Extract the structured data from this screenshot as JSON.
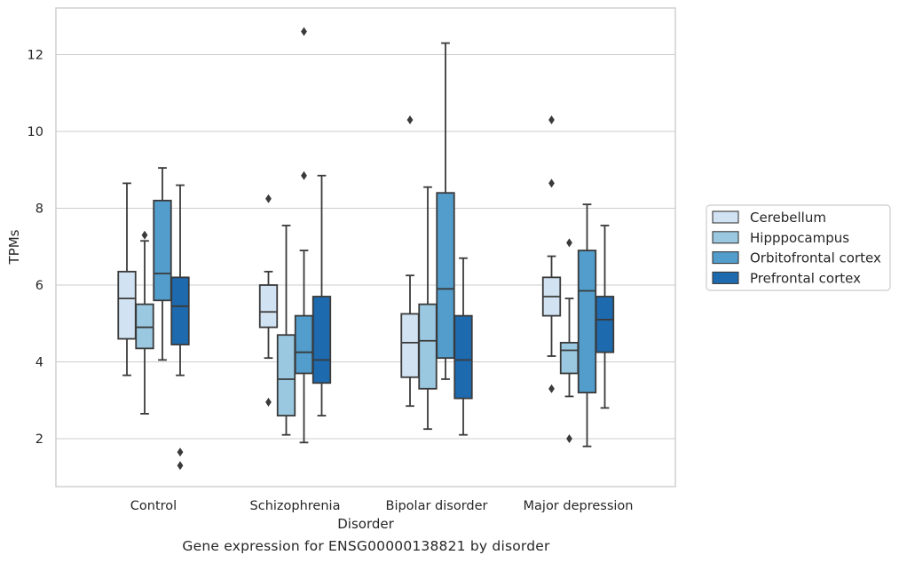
{
  "chart_data": {
    "type": "box",
    "xlabel": "Disorder",
    "ylabel": "TPMs",
    "ylim": [
      0.75,
      13.25
    ],
    "yticks": [
      2,
      4,
      6,
      8,
      10,
      12
    ],
    "grid": "horizontal",
    "legend_position": "right",
    "categories": [
      "Control",
      "Schizophrenia",
      "Bipolar disorder",
      "Major depression"
    ],
    "series": [
      {
        "name": "Cerebellum",
        "color": "#d1e2f2",
        "boxes": [
          {
            "whislo": 3.65,
            "q1": 4.6,
            "med": 5.65,
            "q3": 6.35,
            "whishi": 8.65,
            "fliers": []
          },
          {
            "whislo": 4.1,
            "q1": 4.9,
            "med": 5.3,
            "q3": 6.0,
            "whishi": 6.35,
            "fliers": [
              8.25,
              2.95
            ]
          },
          {
            "whislo": 2.85,
            "q1": 3.6,
            "med": 4.5,
            "q3": 5.25,
            "whishi": 6.25,
            "fliers": [
              10.3
            ]
          },
          {
            "whislo": 4.15,
            "q1": 5.2,
            "med": 5.7,
            "q3": 6.2,
            "whishi": 6.75,
            "fliers": [
              10.3,
              8.65,
              3.3
            ]
          }
        ]
      },
      {
        "name": "Hipppocampus",
        "color": "#9ac8e0",
        "boxes": [
          {
            "whislo": 2.65,
            "q1": 4.35,
            "med": 4.9,
            "q3": 5.5,
            "whishi": 7.15,
            "fliers": [
              7.3
            ]
          },
          {
            "whislo": 2.1,
            "q1": 2.6,
            "med": 3.55,
            "q3": 4.7,
            "whishi": 7.55,
            "fliers": []
          },
          {
            "whislo": 2.25,
            "q1": 3.3,
            "med": 4.55,
            "q3": 5.5,
            "whishi": 8.55,
            "fliers": []
          },
          {
            "whislo": 3.1,
            "q1": 3.7,
            "med": 4.3,
            "q3": 4.5,
            "whishi": 5.65,
            "fliers": [
              7.1,
              2.0
            ]
          }
        ]
      },
      {
        "name": "Orbitofrontal cortex",
        "color": "#529dcc",
        "boxes": [
          {
            "whislo": 4.05,
            "q1": 5.6,
            "med": 6.3,
            "q3": 8.2,
            "whishi": 9.05,
            "fliers": []
          },
          {
            "whislo": 1.9,
            "q1": 3.7,
            "med": 4.25,
            "q3": 5.2,
            "whishi": 6.9,
            "fliers": [
              12.6,
              8.85
            ]
          },
          {
            "whislo": 3.55,
            "q1": 4.1,
            "med": 5.9,
            "q3": 8.4,
            "whishi": 12.3,
            "fliers": []
          },
          {
            "whislo": 1.8,
            "q1": 3.2,
            "med": 5.85,
            "q3": 6.9,
            "whishi": 8.1,
            "fliers": []
          }
        ]
      },
      {
        "name": "Prefrontal cortex",
        "color": "#1d6aaf",
        "boxes": [
          {
            "whislo": 3.65,
            "q1": 4.45,
            "med": 5.45,
            "q3": 6.2,
            "whishi": 8.6,
            "fliers": [
              1.65,
              1.3
            ]
          },
          {
            "whislo": 2.6,
            "q1": 3.45,
            "med": 4.05,
            "q3": 5.7,
            "whishi": 8.85,
            "fliers": []
          },
          {
            "whislo": 2.1,
            "q1": 3.05,
            "med": 4.05,
            "q3": 5.2,
            "whishi": 6.7,
            "fliers": []
          },
          {
            "whislo": 2.8,
            "q1": 4.25,
            "med": 5.1,
            "q3": 5.7,
            "whishi": 7.55,
            "fliers": []
          }
        ]
      }
    ]
  },
  "caption": "Gene expression for ENSG00000138821 by disorder"
}
